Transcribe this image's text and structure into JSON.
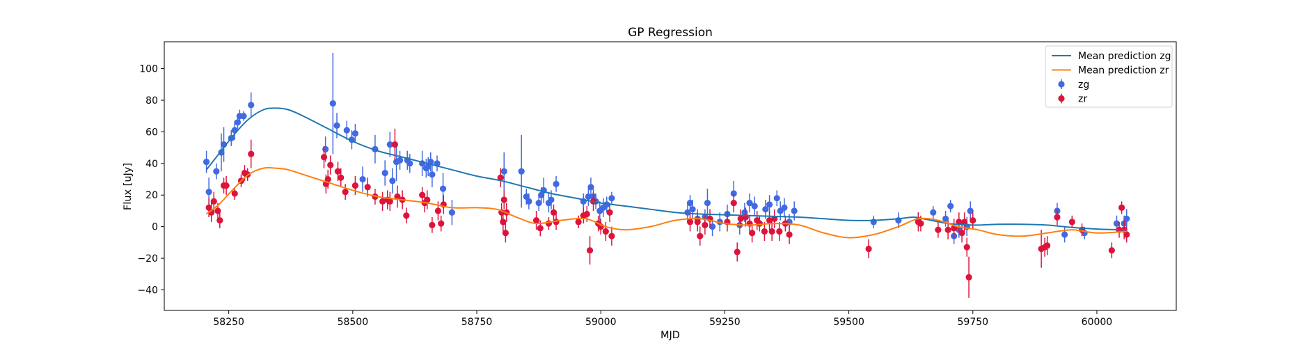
{
  "chart_data": {
    "type": "scatter",
    "title": "GP Regression",
    "xlabel": "MJD",
    "ylabel": "Flux [uJy]",
    "xlim": [
      58120,
      60160
    ],
    "ylim": [
      -53,
      117
    ],
    "xticks": [
      58250,
      58500,
      58750,
      59000,
      59250,
      59500,
      59750,
      60000
    ],
    "yticks": [
      -40,
      -20,
      0,
      20,
      40,
      60,
      80,
      100
    ],
    "grid": false,
    "legend_position": "top-right",
    "legend": [
      {
        "label": "Mean prediction zg",
        "kind": "line",
        "color": "#1f77b4"
      },
      {
        "label": "Mean prediction zr",
        "kind": "line",
        "color": "#ff7f0e"
      },
      {
        "label": "zg",
        "kind": "errorbar",
        "color": "#4169e1"
      },
      {
        "label": "zr",
        "kind": "errorbar",
        "color": "#dc143c"
      }
    ],
    "lines": [
      {
        "name": "Mean prediction zg",
        "color": "#1f77b4",
        "x": [
          58205,
          58230,
          58260,
          58290,
          58320,
          58345,
          58370,
          58400,
          58450,
          58500,
          58550,
          58600,
          58650,
          58700,
          58750,
          58800,
          58850,
          58900,
          58950,
          59000,
          59050,
          59100,
          59150,
          59200,
          59250,
          59300,
          59350,
          59400,
          59450,
          59500,
          59550,
          59600,
          59630,
          59650,
          59700,
          59750,
          59800,
          59850,
          59900,
          59950,
          60000,
          60060
        ],
        "y": [
          36,
          46,
          58,
          68,
          74,
          75,
          74,
          70,
          62,
          54,
          48,
          44,
          40,
          36,
          32,
          29,
          25,
          21,
          18,
          15,
          13,
          11,
          9,
          8,
          7.5,
          7,
          6.5,
          6,
          5,
          4,
          4,
          5,
          6,
          5,
          2,
          1,
          1.5,
          1.5,
          1,
          -0.5,
          -1.5,
          -2
        ]
      },
      {
        "name": "Mean prediction zr",
        "color": "#ff7f0e",
        "x": [
          58205,
          58230,
          58260,
          58290,
          58320,
          58345,
          58370,
          58400,
          58450,
          58500,
          58550,
          58600,
          58650,
          58700,
          58750,
          58790,
          58830,
          58870,
          58920,
          58970,
          59010,
          59050,
          59100,
          59150,
          59200,
          59250,
          59300,
          59350,
          59400,
          59450,
          59500,
          59550,
          59600,
          59640,
          59680,
          59720,
          59760,
          59800,
          59850,
          59900,
          59950,
          60000,
          60060
        ],
        "y": [
          8,
          14,
          24,
          33,
          37,
          37,
          36,
          33,
          28,
          23,
          19,
          17,
          15,
          12,
          12,
          11,
          6,
          2,
          4,
          5,
          0,
          -2,
          0,
          4,
          5,
          2,
          1,
          2,
          1,
          -4,
          -7,
          -5,
          0,
          5,
          4,
          0,
          -2,
          -5,
          -6,
          -4,
          -2,
          -4,
          -3
        ]
      }
    ],
    "series": [
      {
        "name": "zg",
        "color": "#4169e1",
        "points": [
          [
            58205,
            41,
            7
          ],
          [
            58210,
            22,
            9
          ],
          [
            58225,
            35,
            5
          ],
          [
            58235,
            47,
            12
          ],
          [
            58240,
            52,
            11
          ],
          [
            58255,
            56,
            5
          ],
          [
            58262,
            61,
            6
          ],
          [
            58268,
            66,
            4
          ],
          [
            58272,
            70,
            4
          ],
          [
            58280,
            70,
            3
          ],
          [
            58295,
            77,
            8
          ],
          [
            58445,
            49,
            8
          ],
          [
            58460,
            78,
            32
          ],
          [
            58468,
            64,
            8
          ],
          [
            58488,
            61,
            6
          ],
          [
            58498,
            55,
            6
          ],
          [
            58505,
            59,
            6
          ],
          [
            58520,
            30,
            8
          ],
          [
            58545,
            49,
            9
          ],
          [
            58565,
            34,
            8
          ],
          [
            58575,
            52,
            8
          ],
          [
            58580,
            29,
            8
          ],
          [
            58588,
            41,
            12
          ],
          [
            58595,
            42,
            6
          ],
          [
            58610,
            42,
            6
          ],
          [
            58615,
            40,
            6
          ],
          [
            58640,
            40,
            8
          ],
          [
            58648,
            37,
            6
          ],
          [
            58652,
            38,
            6
          ],
          [
            58657,
            41,
            6
          ],
          [
            58660,
            33,
            8
          ],
          [
            58670,
            40,
            5
          ],
          [
            58682,
            24,
            10
          ],
          [
            58700,
            9,
            8
          ],
          [
            58805,
            35,
            12
          ],
          [
            58840,
            35,
            23
          ],
          [
            58850,
            19,
            5
          ],
          [
            58855,
            16,
            5
          ],
          [
            58875,
            15,
            5
          ],
          [
            58880,
            20,
            5
          ],
          [
            58885,
            23,
            8
          ],
          [
            58895,
            15,
            6
          ],
          [
            58900,
            17,
            6
          ],
          [
            58910,
            27,
            5
          ],
          [
            58965,
            16,
            5
          ],
          [
            58975,
            19,
            6
          ],
          [
            58980,
            25,
            6
          ],
          [
            58985,
            19,
            5
          ],
          [
            58990,
            16,
            5
          ],
          [
            58998,
            10,
            6
          ],
          [
            59005,
            12,
            6
          ],
          [
            59012,
            14,
            5
          ],
          [
            59022,
            18,
            4
          ],
          [
            59175,
            9,
            6
          ],
          [
            59180,
            15,
            5
          ],
          [
            59185,
            11,
            6
          ],
          [
            59195,
            5,
            6
          ],
          [
            59210,
            6,
            5
          ],
          [
            59215,
            15,
            9
          ],
          [
            59225,
            0,
            6
          ],
          [
            59240,
            3,
            6
          ],
          [
            59255,
            8,
            6
          ],
          [
            59268,
            21,
            8
          ],
          [
            59280,
            1,
            6
          ],
          [
            59290,
            9,
            6
          ],
          [
            59300,
            15,
            6
          ],
          [
            59310,
            13,
            6
          ],
          [
            59320,
            2,
            5
          ],
          [
            59332,
            11,
            6
          ],
          [
            59340,
            14,
            6
          ],
          [
            59355,
            18,
            5
          ],
          [
            59362,
            10,
            6
          ],
          [
            59370,
            12,
            6
          ],
          [
            59380,
            3,
            5
          ],
          [
            59390,
            10,
            6
          ],
          [
            59550,
            3,
            4
          ],
          [
            59600,
            4,
            5
          ],
          [
            59640,
            4,
            5
          ],
          [
            59670,
            9,
            4
          ],
          [
            59695,
            5,
            5
          ],
          [
            59705,
            13,
            4
          ],
          [
            59712,
            -6,
            5
          ],
          [
            59722,
            -2,
            5
          ],
          [
            59738,
            0,
            6
          ],
          [
            59745,
            10,
            6
          ],
          [
            59920,
            10,
            5
          ],
          [
            59935,
            -5,
            5
          ],
          [
            59975,
            -4,
            4
          ],
          [
            60040,
            2,
            5
          ],
          [
            60055,
            2,
            5
          ],
          [
            60060,
            5,
            6
          ]
        ]
      },
      {
        "name": "zr",
        "color": "#dc143c",
        "points": [
          [
            58210,
            12,
            6
          ],
          [
            58215,
            9,
            6
          ],
          [
            58220,
            16,
            6
          ],
          [
            58228,
            10,
            5
          ],
          [
            58232,
            4,
            5
          ],
          [
            58240,
            26,
            5
          ],
          [
            58245,
            26,
            6
          ],
          [
            58262,
            21,
            4
          ],
          [
            58275,
            29,
            4
          ],
          [
            58282,
            34,
            5
          ],
          [
            58288,
            33,
            4
          ],
          [
            58295,
            46,
            9
          ],
          [
            58442,
            44,
            7
          ],
          [
            58446,
            27,
            6
          ],
          [
            58450,
            30,
            6
          ],
          [
            58455,
            39,
            6
          ],
          [
            58470,
            35,
            6
          ],
          [
            58476,
            31,
            6
          ],
          [
            58485,
            22,
            5
          ],
          [
            58505,
            26,
            6
          ],
          [
            58530,
            25,
            6
          ],
          [
            58545,
            19,
            5
          ],
          [
            58560,
            16,
            6
          ],
          [
            58570,
            17,
            6
          ],
          [
            58575,
            16,
            6
          ],
          [
            58585,
            52,
            10
          ],
          [
            58590,
            19,
            7
          ],
          [
            58600,
            17,
            6
          ],
          [
            58608,
            7,
            5
          ],
          [
            58640,
            20,
            5
          ],
          [
            58645,
            15,
            6
          ],
          [
            58650,
            17,
            6
          ],
          [
            58660,
            1,
            5
          ],
          [
            58672,
            10,
            6
          ],
          [
            58678,
            2,
            5
          ],
          [
            58683,
            14,
            6
          ],
          [
            58798,
            31,
            6
          ],
          [
            58800,
            9,
            6
          ],
          [
            58803,
            3,
            6
          ],
          [
            58805,
            17,
            6
          ],
          [
            58808,
            -4,
            6
          ],
          [
            58810,
            9,
            6
          ],
          [
            58870,
            4,
            6
          ],
          [
            58878,
            -1,
            5
          ],
          [
            58895,
            2,
            4
          ],
          [
            58905,
            9,
            5
          ],
          [
            58910,
            3,
            5
          ],
          [
            58955,
            3,
            4
          ],
          [
            58965,
            7,
            5
          ],
          [
            58972,
            8,
            5
          ],
          [
            58978,
            -15,
            9
          ],
          [
            58985,
            16,
            6
          ],
          [
            58995,
            2,
            5
          ],
          [
            59000,
            0,
            5
          ],
          [
            59010,
            -3,
            6
          ],
          [
            59018,
            9,
            6
          ],
          [
            59022,
            -6,
            6
          ],
          [
            59180,
            3,
            6
          ],
          [
            59195,
            3,
            6
          ],
          [
            59200,
            -6,
            6
          ],
          [
            59210,
            1,
            6
          ],
          [
            59220,
            5,
            6
          ],
          [
            59255,
            3,
            6
          ],
          [
            59268,
            15,
            6
          ],
          [
            59275,
            -16,
            6
          ],
          [
            59282,
            5,
            6
          ],
          [
            59292,
            6,
            6
          ],
          [
            59300,
            2,
            5
          ],
          [
            59305,
            -4,
            6
          ],
          [
            59315,
            4,
            6
          ],
          [
            59320,
            2,
            5
          ],
          [
            59330,
            -3,
            6
          ],
          [
            59340,
            4,
            6
          ],
          [
            59345,
            -3,
            6
          ],
          [
            59350,
            5,
            6
          ],
          [
            59360,
            -3,
            6
          ],
          [
            59372,
            2,
            5
          ],
          [
            59380,
            -5,
            6
          ],
          [
            59540,
            -14,
            6
          ],
          [
            59640,
            3,
            6
          ],
          [
            59645,
            2,
            5
          ],
          [
            59680,
            -2,
            5
          ],
          [
            59700,
            -2,
            6
          ],
          [
            59712,
            -1,
            6
          ],
          [
            59722,
            3,
            6
          ],
          [
            59728,
            -4,
            6
          ],
          [
            59733,
            3,
            6
          ],
          [
            59738,
            -13,
            6
          ],
          [
            59742,
            -32,
            13
          ],
          [
            59750,
            4,
            5
          ],
          [
            59888,
            -14,
            12
          ],
          [
            59895,
            -13,
            6
          ],
          [
            59900,
            -12,
            6
          ],
          [
            59920,
            6,
            5
          ],
          [
            59950,
            3,
            4
          ],
          [
            59970,
            -2,
            4
          ],
          [
            60030,
            -15,
            5
          ],
          [
            60045,
            -2,
            5
          ],
          [
            60050,
            12,
            4
          ],
          [
            60055,
            -2,
            6
          ],
          [
            60060,
            -5,
            5
          ]
        ]
      }
    ]
  }
}
